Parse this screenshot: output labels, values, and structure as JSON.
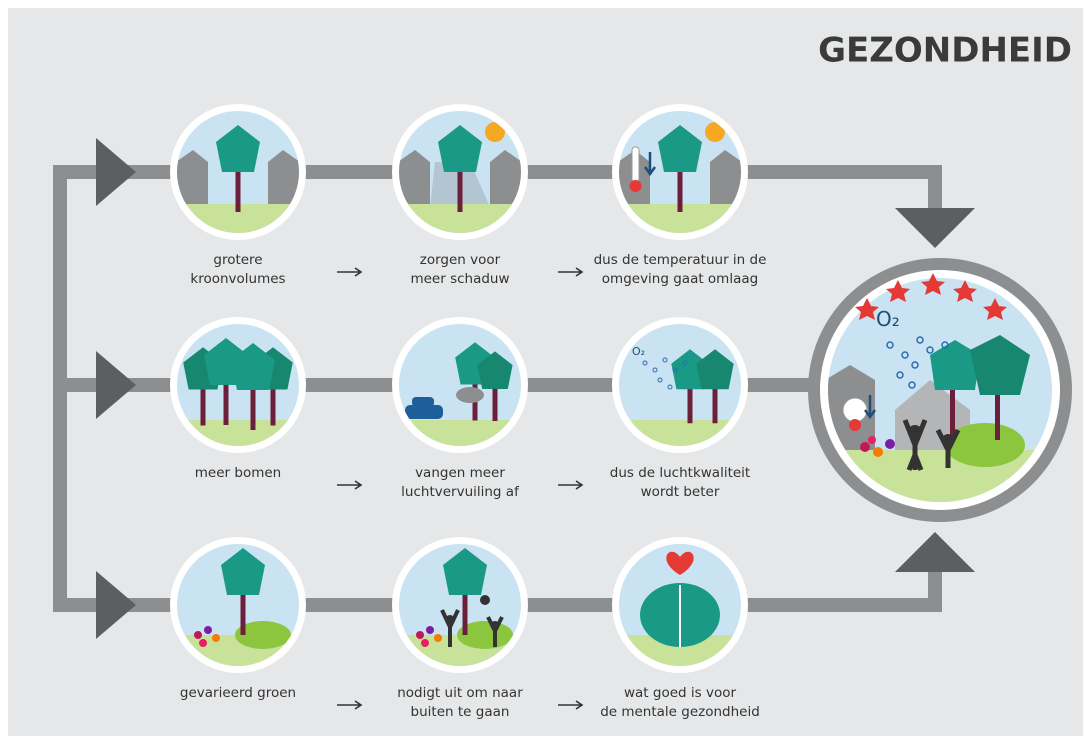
{
  "title": "GEZONDHEID",
  "rows": [
    {
      "steps": [
        {
          "lines": [
            "grotere",
            "kroonvolumes"
          ]
        },
        {
          "lines": [
            "zorgen voor",
            "meer schaduw"
          ]
        },
        {
          "lines": [
            "dus de temperatuur in de",
            "omgeving gaat omlaag"
          ]
        }
      ]
    },
    {
      "steps": [
        {
          "lines": [
            "meer bomen"
          ]
        },
        {
          "lines": [
            "vangen meer",
            "luchtvervuiling af"
          ]
        },
        {
          "lines": [
            "dus de luchtkwaliteit",
            "wordt beter"
          ]
        }
      ]
    },
    {
      "steps": [
        {
          "lines": [
            "gevarieerd groen"
          ]
        },
        {
          "lines": [
            "nodigt uit om naar",
            "buiten te gaan"
          ]
        },
        {
          "lines": [
            "wat goed is voor",
            "de mentale gezondheid"
          ]
        }
      ]
    }
  ],
  "o2_label": "O₂"
}
